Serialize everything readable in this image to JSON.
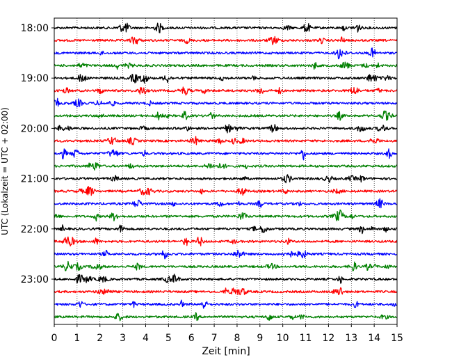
{
  "chart_data": {
    "type": "line",
    "title": "",
    "xlabel": "Zeit  [min]",
    "ylabel": "UTC (Lokalzeit = UTC + 02:00)",
    "xlim": [
      0,
      15
    ],
    "x_ticks": [
      0,
      1,
      2,
      3,
      4,
      5,
      6,
      7,
      8,
      9,
      10,
      11,
      12,
      13,
      14,
      15
    ],
    "x_tick_labels": [
      "0",
      "1",
      "2",
      "3",
      "4",
      "5",
      "6",
      "7",
      "8",
      "9",
      "10",
      "11",
      "12",
      "13",
      "14",
      "15"
    ],
    "y_ticks": [
      "18:00",
      "19:00",
      "20:00",
      "21:00",
      "22:00",
      "23:00"
    ],
    "y_tick_rows": [
      0,
      4,
      8,
      12,
      16,
      20
    ],
    "trace_minutes_per_row": 15,
    "trace_count": 24,
    "trace_colors": [
      "#000000",
      "#ff0000",
      "#0000ff",
      "#008000"
    ],
    "vertical_grid": "dotted",
    "legend": "none"
  }
}
